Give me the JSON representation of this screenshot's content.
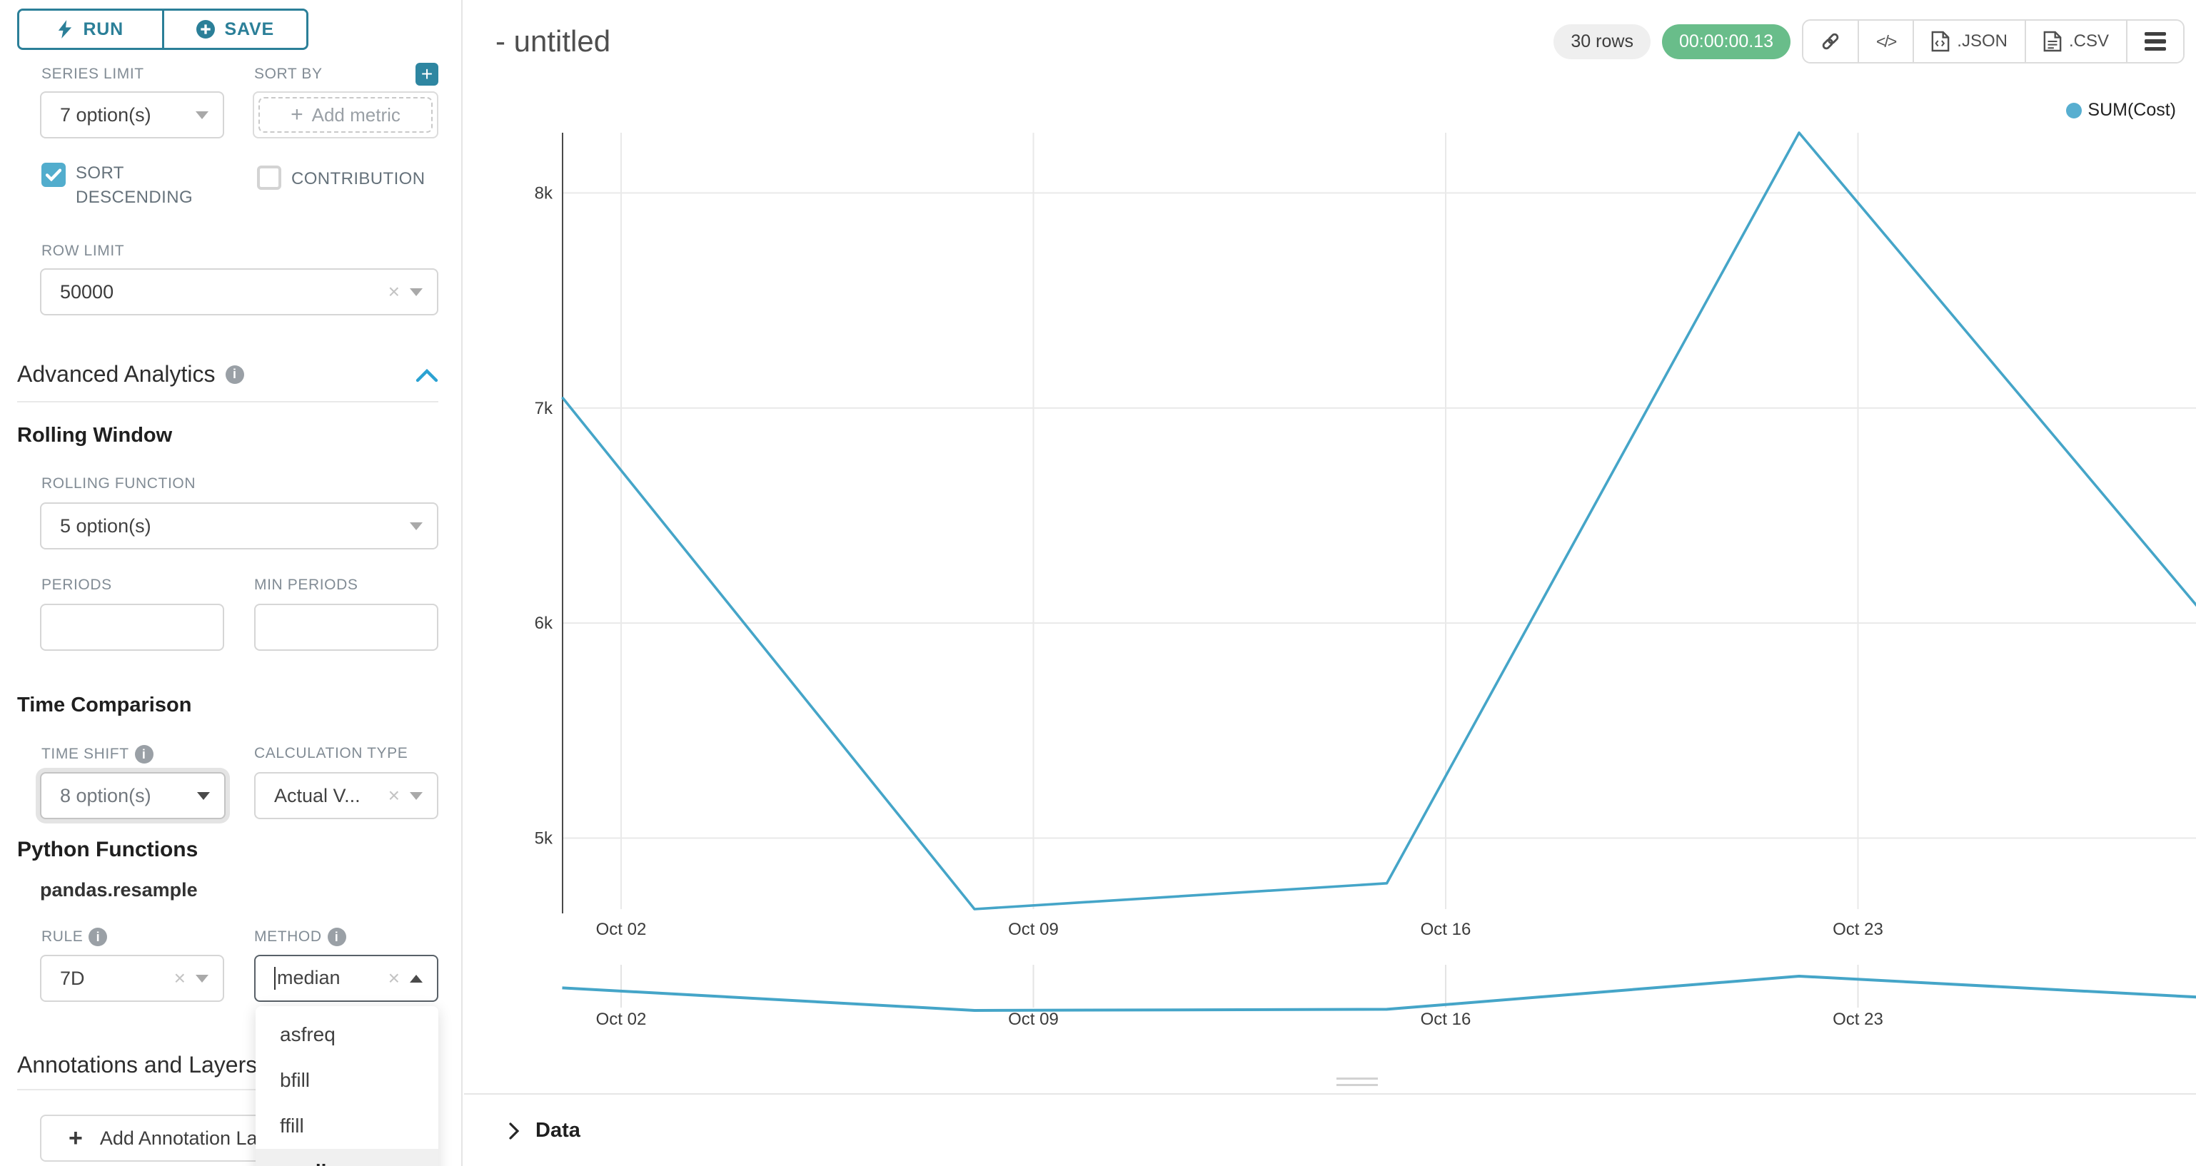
{
  "app": {
    "title": "- untitled"
  },
  "colors": {
    "primary_teal": "#2b7f98",
    "checkbox_blue": "#52adcd",
    "series_line": "#45a5c8",
    "legend_dot": "#57aed0",
    "success_green": "#69bd8a",
    "chevron_blue": "#2ba2d2",
    "gridline": "#e9e9e9",
    "axis_line": "#4a4a4a"
  },
  "sidebar": {
    "run_label": "RUN",
    "save_label": "SAVE",
    "series_limit": {
      "label": "SERIES LIMIT",
      "value": "7 option(s)"
    },
    "sort_by": {
      "label": "SORT BY",
      "placeholder": "Add metric"
    },
    "sort_descending": {
      "label": "SORT DESCENDING",
      "checked": true
    },
    "contribution": {
      "label": "CONTRIBUTION",
      "checked": false
    },
    "row_limit": {
      "label": "ROW LIMIT",
      "value": "50000"
    },
    "advanced_analytics_title": "Advanced Analytics",
    "rolling_window": {
      "title": "Rolling Window",
      "rolling_function": {
        "label": "ROLLING FUNCTION",
        "value": "5 option(s)"
      },
      "periods_label": "PERIODS",
      "min_periods_label": "MIN PERIODS"
    },
    "time_comparison": {
      "title": "Time Comparison",
      "time_shift": {
        "label": "TIME SHIFT",
        "value": "8 option(s)"
      },
      "calculation_type": {
        "label": "CALCULATION TYPE",
        "value": "Actual V..."
      }
    },
    "python_functions": {
      "title": "Python Functions",
      "subtitle": "pandas.resample",
      "rule": {
        "label": "RULE",
        "value": "7D"
      },
      "method": {
        "label": "METHOD",
        "value": "median",
        "options": [
          "asfreq",
          "bfill",
          "ffill",
          "median"
        ],
        "selected_option": "median"
      }
    },
    "annotations": {
      "title": "Annotations and Layers",
      "add_button": "Add Annotation Layer"
    }
  },
  "header": {
    "rows_badge": "30 rows",
    "timer_badge": "00:00:00.13",
    "export_json_label": ".JSON",
    "export_csv_label": ".CSV"
  },
  "data_panel": {
    "title": "Data"
  },
  "chart_data": {
    "type": "line",
    "title": "- untitled",
    "legend": [
      "SUM(Cost)"
    ],
    "legend_position": "top-right",
    "grid": true,
    "x": [
      "Oct 01",
      "Oct 08",
      "Oct 15",
      "Oct 22",
      "Oct 29"
    ],
    "x_days": [
      0,
      7,
      14,
      21,
      28
    ],
    "series": [
      {
        "name": "SUM(Cost)",
        "values": [
          7050,
          4670,
          4790,
          8280,
          6000
        ]
      }
    ],
    "x_tick_labels": [
      "Oct 02",
      "Oct 09",
      "Oct 16",
      "Oct 23"
    ],
    "x_tick_days": [
      1,
      8,
      15,
      22
    ],
    "y_ticks": [
      5000,
      6000,
      7000,
      8000
    ],
    "y_tick_labels": [
      "5k",
      "6k",
      "7k",
      "8k"
    ],
    "ylim": [
      4670,
      8280
    ],
    "xlabel": "",
    "ylabel": "",
    "preview_strip": {
      "note": "same series shown in mini preview below main chart",
      "x_tick_labels": [
        "Oct 02",
        "Oct 09",
        "Oct 16",
        "Oct 23"
      ]
    }
  }
}
